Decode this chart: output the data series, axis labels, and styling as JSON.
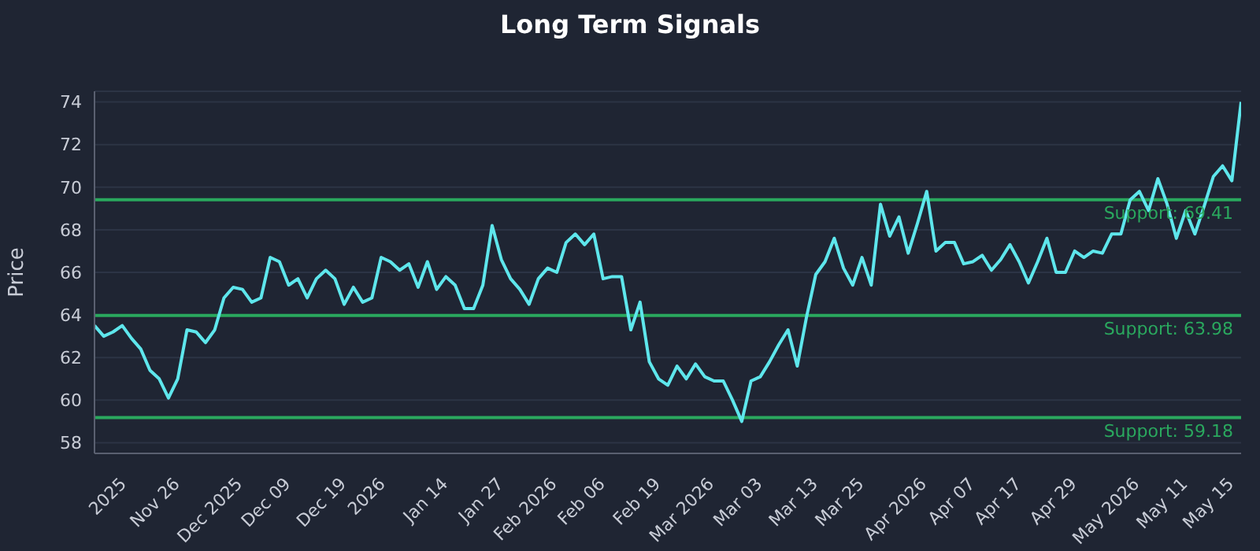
{
  "chart_data": {
    "type": "line",
    "title": "Long Term Signals",
    "ylabel": "Price",
    "categories": [
      null,
      null,
      "2025",
      null,
      null,
      null,
      null,
      "Nov 26",
      null,
      null,
      null,
      null,
      null,
      "Dec 2025",
      null,
      null,
      null,
      null,
      null,
      "Dec 09",
      null,
      null,
      null,
      null,
      null,
      "Dec 19",
      null,
      null,
      null,
      null,
      "2026",
      null,
      null,
      null,
      null,
      null,
      "Jan 14",
      null,
      null,
      null,
      null,
      null,
      "Jan 27",
      null,
      null,
      null,
      null,
      "Feb 2026",
      null,
      null,
      null,
      null,
      null,
      "Feb 06",
      null,
      null,
      null,
      null,
      null,
      "Feb 19",
      null,
      null,
      null,
      null,
      "Mar 2026",
      null,
      null,
      null,
      null,
      null,
      "Mar 03",
      null,
      null,
      null,
      null,
      null,
      "Mar 13",
      null,
      null,
      null,
      null,
      "Mar 25",
      null,
      null,
      null,
      null,
      null,
      "Apr 2026",
      null,
      null,
      null,
      null,
      null,
      "Apr 07",
      null,
      null,
      null,
      null,
      "Apr 17",
      null,
      null,
      null,
      null,
      null,
      "Apr 29",
      null,
      null,
      null,
      null,
      null,
      "May 2026",
      null,
      null,
      null,
      null,
      null,
      "May 11",
      null,
      null,
      null,
      null,
      "May 15",
      null,
      null,
      null
    ],
    "series": [
      {
        "color": "#5ee6ec",
        "values": [
          63.5,
          63.0,
          63.2,
          63.5,
          62.9,
          62.4,
          61.4,
          61.0,
          60.1,
          61.0,
          63.3,
          63.2,
          62.7,
          63.3,
          64.8,
          65.3,
          65.2,
          64.6,
          64.8,
          66.7,
          66.5,
          65.4,
          65.7,
          64.8,
          65.7,
          66.1,
          65.7,
          64.5,
          65.3,
          64.6,
          64.8,
          66.7,
          66.5,
          66.1,
          66.4,
          65.3,
          66.5,
          65.2,
          65.8,
          65.4,
          64.3,
          64.3,
          65.4,
          68.2,
          66.6,
          65.7,
          65.2,
          64.5,
          65.7,
          66.2,
          66.0,
          67.4,
          67.8,
          67.3,
          67.8,
          65.7,
          65.8,
          65.8,
          63.3,
          64.6,
          61.8,
          61.0,
          60.7,
          61.6,
          61.0,
          61.7,
          61.1,
          60.9,
          60.9,
          60.0,
          59.0,
          60.9,
          61.1,
          61.8,
          62.6,
          63.3,
          61.6,
          63.9,
          65.9,
          66.5,
          67.6,
          66.2,
          65.4,
          66.7,
          65.4,
          69.2,
          67.7,
          68.6,
          66.9,
          68.3,
          69.8,
          67.0,
          67.4,
          67.4,
          66.4,
          66.5,
          66.8,
          66.1,
          66.6,
          67.3,
          66.5,
          65.5,
          66.5,
          67.6,
          66.0,
          66.0,
          67.0,
          66.7,
          67.0,
          66.9,
          67.8,
          67.8,
          69.4,
          69.8,
          68.9,
          70.4,
          69.2,
          67.6,
          68.9,
          67.8,
          69.1,
          70.5,
          71.0,
          70.3,
          74.0
        ]
      }
    ],
    "ylim": [
      57.5,
      74.5
    ],
    "yticks": [
      58,
      60,
      62,
      64,
      66,
      68,
      70,
      72,
      74
    ],
    "grid": "y",
    "ref_lines": [
      {
        "axis": "y",
        "value": 69.41,
        "label": "Support: 69.41",
        "color": "#2aa85e"
      },
      {
        "axis": "y",
        "value": 63.98,
        "label": "Support: 63.98",
        "color": "#2aa85e"
      },
      {
        "axis": "y",
        "value": 59.18,
        "label": "Support: 59.18",
        "color": "#2aa85e"
      }
    ]
  }
}
